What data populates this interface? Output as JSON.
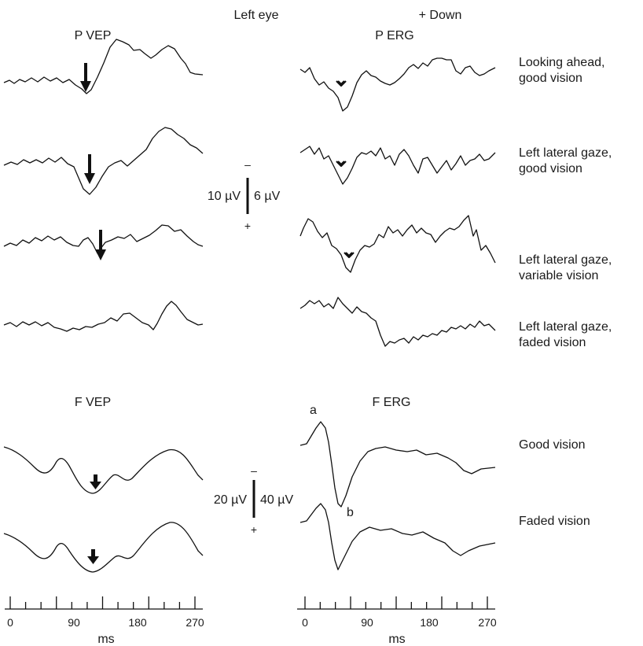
{
  "header": {
    "eye": "Left eye",
    "polarity": "+ Down"
  },
  "panels": {
    "p_vep": "P VEP",
    "p_erg": "P ERG",
    "f_vep": "F VEP",
    "f_erg": "F ERG"
  },
  "pattern_conditions": [
    [
      "Looking ahead,",
      "good vision"
    ],
    [
      "Left lateral gaze,",
      "good vision"
    ],
    [
      "Left lateral gaze,",
      "variable vision"
    ],
    [
      "Left lateral gaze,",
      "faded vision"
    ]
  ],
  "flash_conditions": [
    "Good vision",
    "Faded vision"
  ],
  "scale_pattern": {
    "vep": "10 µV",
    "erg": "6 µV",
    "neg": "–",
    "pos": "+"
  },
  "scale_flash": {
    "vep": "20 µV",
    "erg": "40 µV",
    "neg": "–",
    "pos": "+"
  },
  "erg_markers": {
    "a": "a",
    "b": "b"
  },
  "time_axis": {
    "ticks": [
      "0",
      "90",
      "180",
      "270"
    ],
    "unit": "ms"
  }
}
